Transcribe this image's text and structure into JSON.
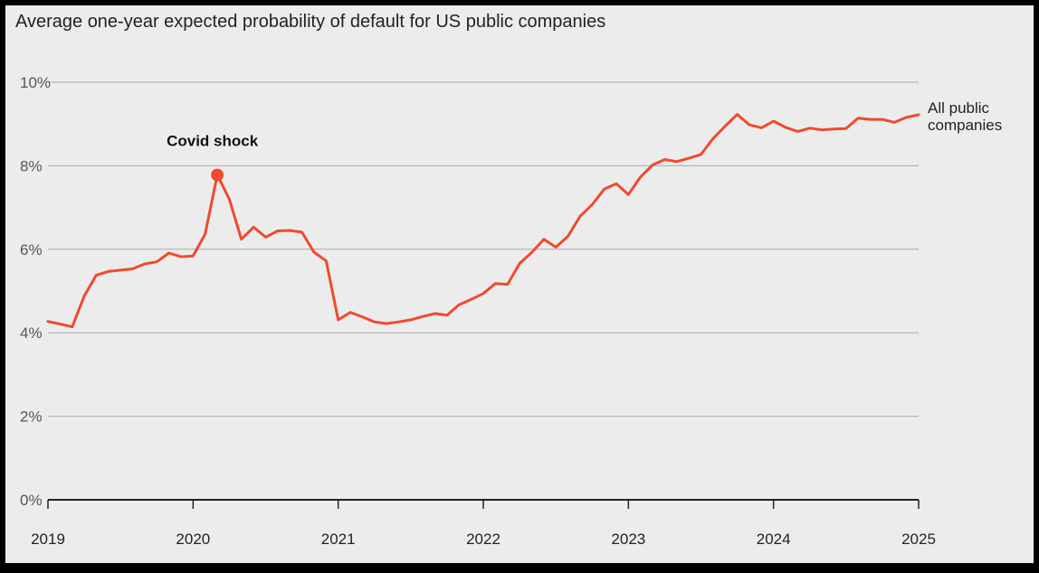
{
  "chart_data": {
    "type": "line",
    "title": "Average one-year expected probability of default for US public companies",
    "xlabel": "",
    "ylabel": "",
    "ylim": [
      0,
      10
    ],
    "xlim": [
      2019,
      2025
    ],
    "y_ticks": [
      {
        "value": 0,
        "label": "0%"
      },
      {
        "value": 2,
        "label": "2%"
      },
      {
        "value": 4,
        "label": "4%"
      },
      {
        "value": 6,
        "label": "6%"
      },
      {
        "value": 8,
        "label": "8%"
      },
      {
        "value": 10,
        "label": "10%"
      }
    ],
    "x_ticks": [
      {
        "value": 2019,
        "label": "2019"
      },
      {
        "value": 2020,
        "label": "2020"
      },
      {
        "value": 2021,
        "label": "2021"
      },
      {
        "value": 2022,
        "label": "2022"
      },
      {
        "value": 2023,
        "label": "2023"
      },
      {
        "value": 2024,
        "label": "2024"
      },
      {
        "value": 2025,
        "label": "2025"
      }
    ],
    "grid": "horizontal",
    "series": [
      {
        "name": "All public companies",
        "color": "#f04a2d",
        "points": [
          [
            2019.0,
            4.27
          ],
          [
            2019.083,
            4.21
          ],
          [
            2019.167,
            4.14
          ],
          [
            2019.25,
            4.88
          ],
          [
            2019.333,
            5.38
          ],
          [
            2019.417,
            5.47
          ],
          [
            2019.5,
            5.5
          ],
          [
            2019.583,
            5.53
          ],
          [
            2019.667,
            5.65
          ],
          [
            2019.75,
            5.7
          ],
          [
            2019.833,
            5.91
          ],
          [
            2019.917,
            5.82
          ],
          [
            2020.0,
            5.84
          ],
          [
            2020.083,
            6.36
          ],
          [
            2020.167,
            7.78
          ],
          [
            2020.25,
            7.2
          ],
          [
            2020.333,
            6.24
          ],
          [
            2020.417,
            6.53
          ],
          [
            2020.5,
            6.29
          ],
          [
            2020.583,
            6.44
          ],
          [
            2020.667,
            6.45
          ],
          [
            2020.75,
            6.41
          ],
          [
            2020.833,
            5.93
          ],
          [
            2020.917,
            5.72
          ],
          [
            2021.0,
            4.31
          ],
          [
            2021.083,
            4.49
          ],
          [
            2021.167,
            4.38
          ],
          [
            2021.25,
            4.26
          ],
          [
            2021.333,
            4.22
          ],
          [
            2021.417,
            4.26
          ],
          [
            2021.5,
            4.31
          ],
          [
            2021.583,
            4.39
          ],
          [
            2021.667,
            4.46
          ],
          [
            2021.75,
            4.42
          ],
          [
            2021.833,
            4.67
          ],
          [
            2021.917,
            4.8
          ],
          [
            2022.0,
            4.94
          ],
          [
            2022.083,
            5.18
          ],
          [
            2022.167,
            5.16
          ],
          [
            2022.25,
            5.66
          ],
          [
            2022.333,
            5.92
          ],
          [
            2022.417,
            6.24
          ],
          [
            2022.5,
            6.05
          ],
          [
            2022.583,
            6.31
          ],
          [
            2022.667,
            6.79
          ],
          [
            2022.75,
            7.07
          ],
          [
            2022.833,
            7.44
          ],
          [
            2022.917,
            7.57
          ],
          [
            2023.0,
            7.31
          ],
          [
            2023.083,
            7.73
          ],
          [
            2023.167,
            8.02
          ],
          [
            2023.25,
            8.15
          ],
          [
            2023.333,
            8.1
          ],
          [
            2023.417,
            8.18
          ],
          [
            2023.5,
            8.27
          ],
          [
            2023.583,
            8.65
          ],
          [
            2023.667,
            8.95
          ],
          [
            2023.75,
            9.23
          ],
          [
            2023.833,
            8.98
          ],
          [
            2023.917,
            8.91
          ],
          [
            2024.0,
            9.07
          ],
          [
            2024.083,
            8.92
          ],
          [
            2024.167,
            8.82
          ],
          [
            2024.25,
            8.9
          ],
          [
            2024.333,
            8.86
          ],
          [
            2024.417,
            8.88
          ],
          [
            2024.5,
            8.89
          ],
          [
            2024.583,
            9.14
          ],
          [
            2024.667,
            9.11
          ],
          [
            2024.75,
            9.11
          ],
          [
            2024.833,
            9.04
          ],
          [
            2024.917,
            9.16
          ],
          [
            2025.0,
            9.22
          ]
        ]
      }
    ],
    "annotations": [
      {
        "text": "Covid shock",
        "x": 2020.167,
        "y": 7.78
      }
    ],
    "series_label_lines": [
      "All public",
      "companies"
    ]
  },
  "colors": {
    "background": "#ececec",
    "frame": "#000000",
    "line": "#f04a2d",
    "grid": "#aaaaaa",
    "axis": "#222222"
  }
}
